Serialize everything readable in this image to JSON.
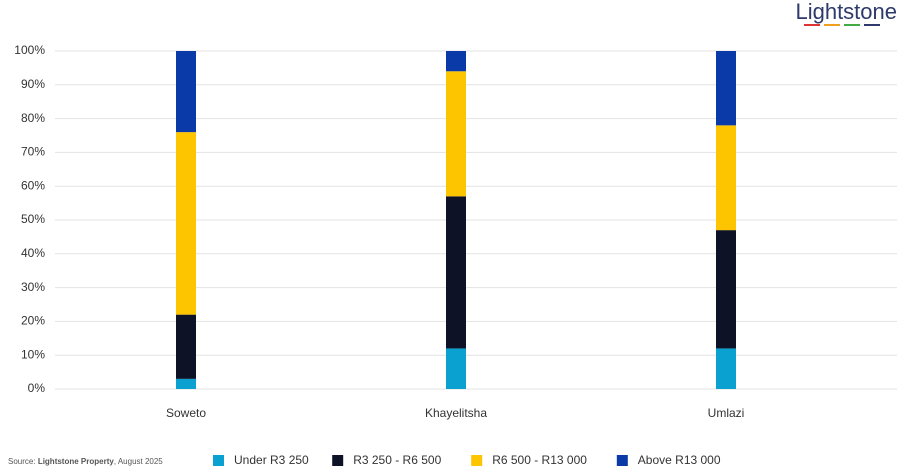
{
  "logo": "Lightstone",
  "source": {
    "prefix": "Source:",
    "name": "Lightstone Property",
    "suffix": ", August 2025"
  },
  "chart_data": {
    "type": "stacked_bar",
    "categories": [
      "Soweto",
      "Khayelitsha",
      "Umlazi"
    ],
    "series": [
      {
        "name": "Under R3 250",
        "color": "#0aa0d0",
        "values": [
          3,
          12,
          12
        ]
      },
      {
        "name": "R3 250 - R6 500",
        "color": "#0d1226",
        "values": [
          19,
          45,
          35
        ]
      },
      {
        "name": "R6 500 - R13 000",
        "color": "#fcc500",
        "values": [
          54,
          37,
          31
        ]
      },
      {
        "name": "Above R13 000",
        "color": "#0a3aa8",
        "values": [
          24,
          6,
          22
        ]
      }
    ],
    "ylim": [
      0,
      100
    ],
    "yticks": [
      {
        "value": 0,
        "label": "0%"
      },
      {
        "value": 10,
        "label": "10%"
      },
      {
        "value": 20,
        "label": "20%"
      },
      {
        "value": 30,
        "label": "30%"
      },
      {
        "value": 40,
        "label": "40%"
      },
      {
        "value": 50,
        "label": "50%"
      },
      {
        "value": 60,
        "label": "60%"
      },
      {
        "value": 70,
        "label": "70%"
      },
      {
        "value": 80,
        "label": "80%"
      },
      {
        "value": 90,
        "label": "90%"
      },
      {
        "value": 100,
        "label": "100%"
      }
    ],
    "grid": true,
    "legend": "bottom"
  }
}
